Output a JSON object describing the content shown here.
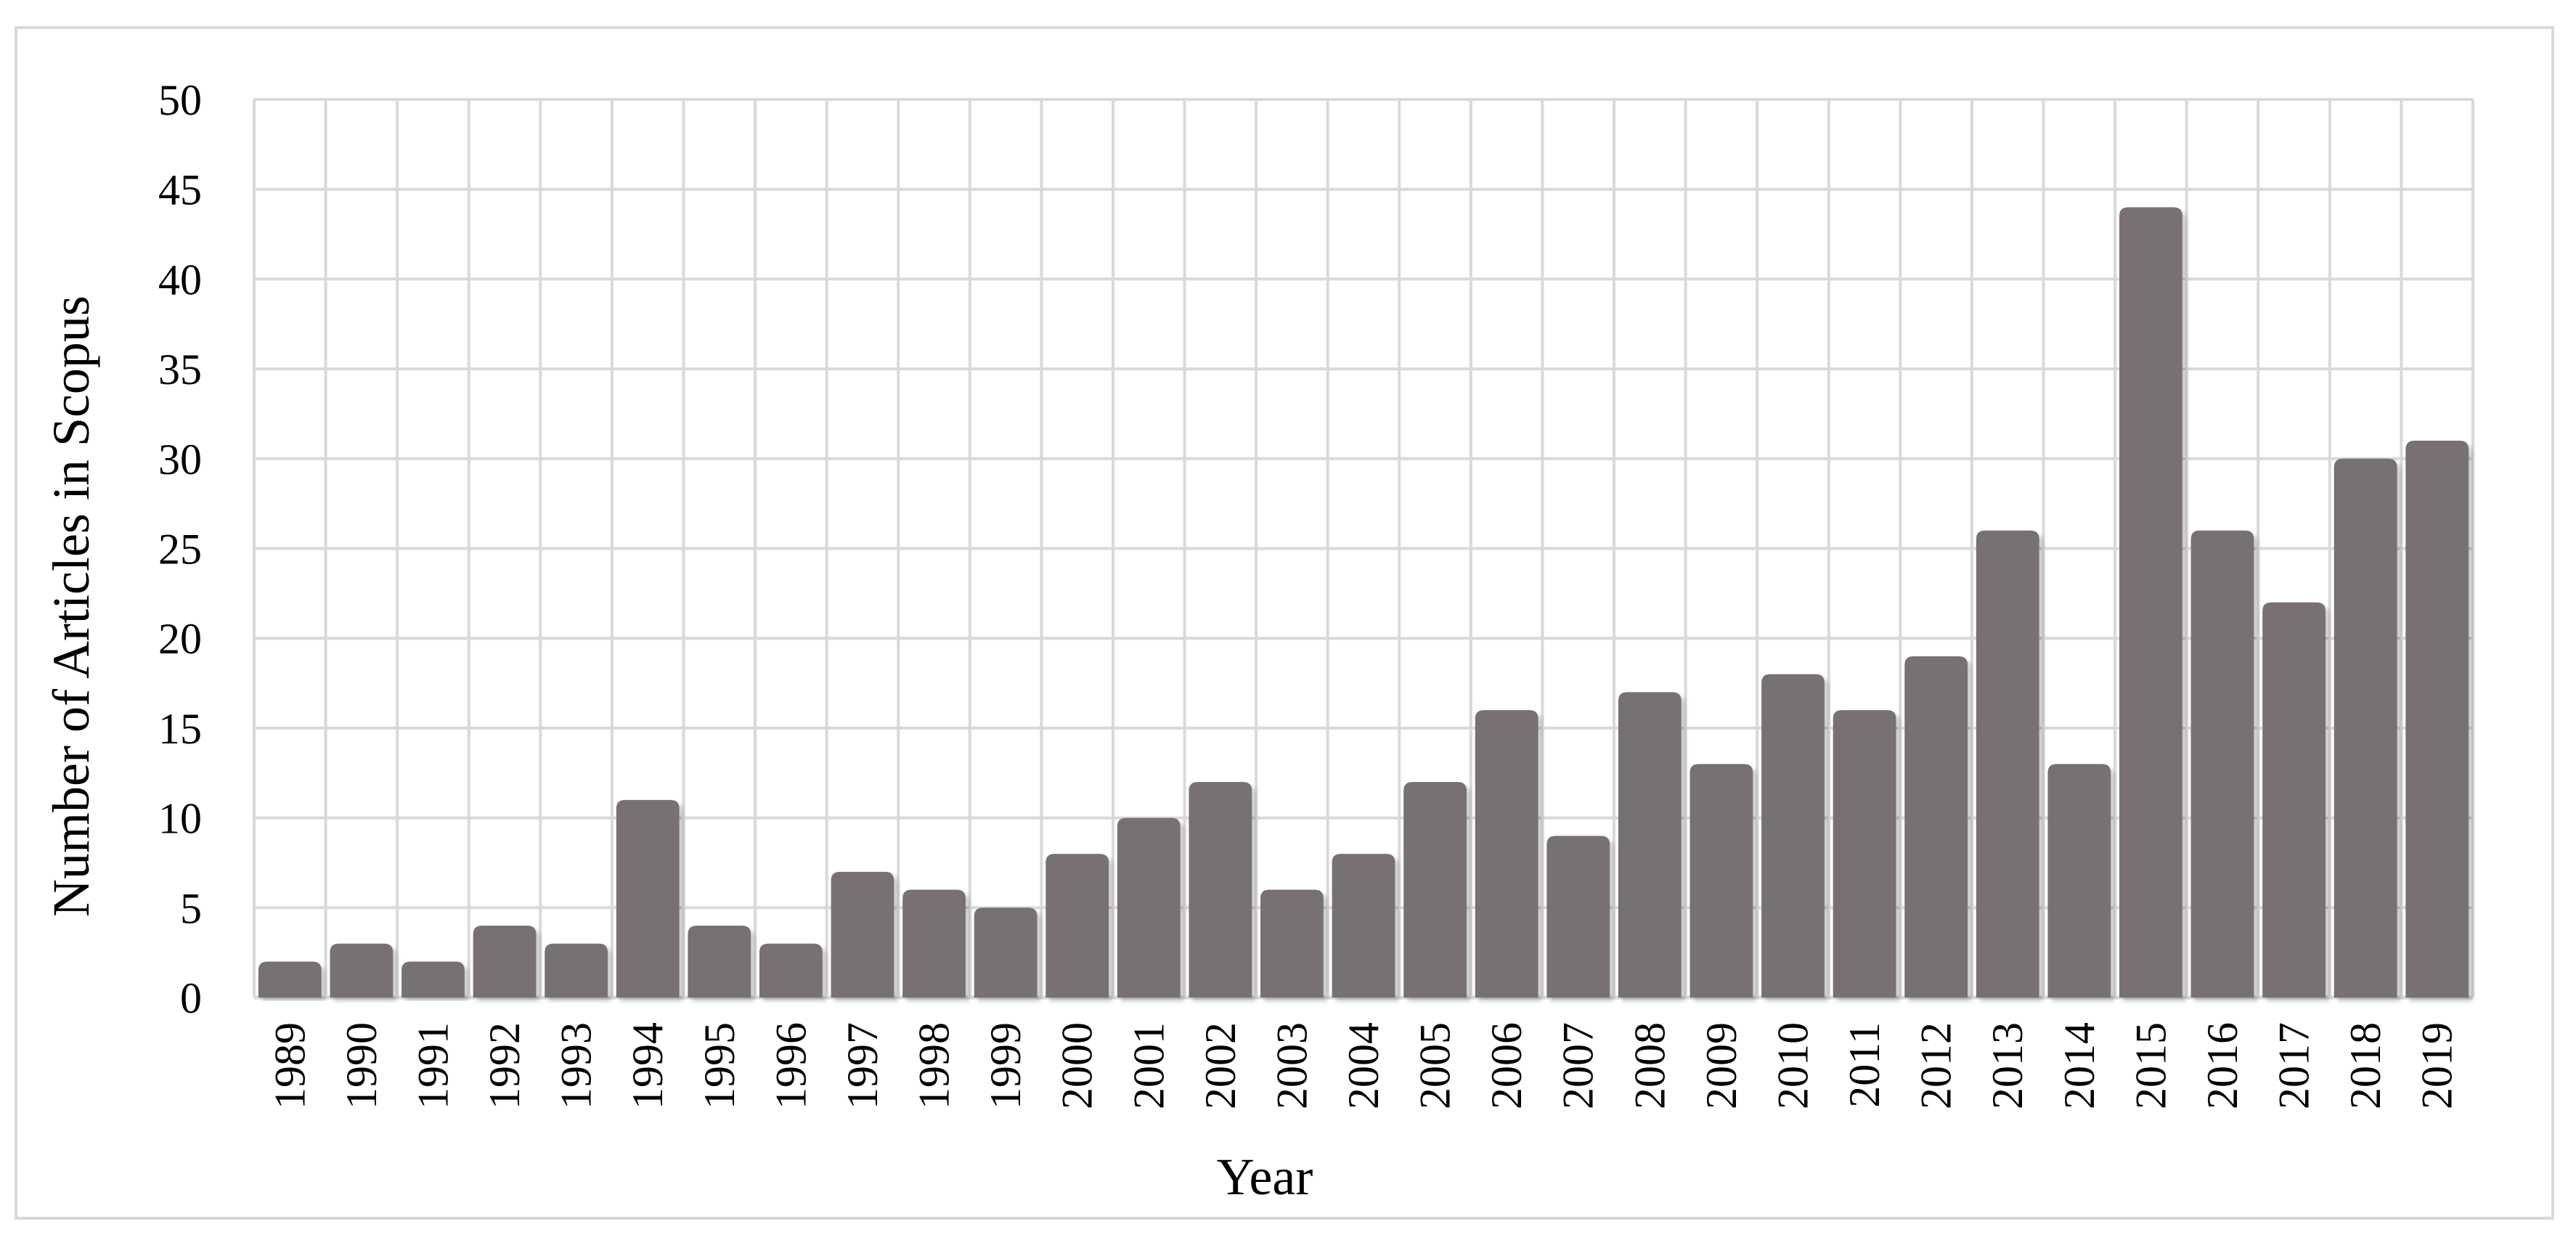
{
  "chart_data": {
    "type": "bar",
    "title": "",
    "xlabel": "Year",
    "ylabel": "Number of Articles in Scopus",
    "categories": [
      "1989",
      "1990",
      "1991",
      "1992",
      "1993",
      "1994",
      "1995",
      "1996",
      "1997",
      "1998",
      "1999",
      "2000",
      "2001",
      "2002",
      "2003",
      "2004",
      "2005",
      "2006",
      "2007",
      "2008",
      "2009",
      "2010",
      "2011",
      "2012",
      "2013",
      "2014",
      "2015",
      "2016",
      "2017",
      "2018",
      "2019"
    ],
    "values": [
      2,
      3,
      2,
      4,
      3,
      11,
      4,
      3,
      7,
      6,
      5,
      8,
      10,
      12,
      6,
      8,
      12,
      16,
      9,
      17,
      13,
      18,
      16,
      19,
      26,
      13,
      44,
      26,
      22,
      30,
      31
    ],
    "ylim": [
      0,
      50
    ],
    "yticks": [
      "0",
      "5",
      "10",
      "15",
      "20",
      "25",
      "30",
      "35",
      "40",
      "45",
      "50"
    ],
    "grid": true,
    "legend": "none",
    "colors": {
      "bar": "#777171",
      "grid": "#d9d9d9",
      "axis": "#d9d9d9"
    }
  }
}
